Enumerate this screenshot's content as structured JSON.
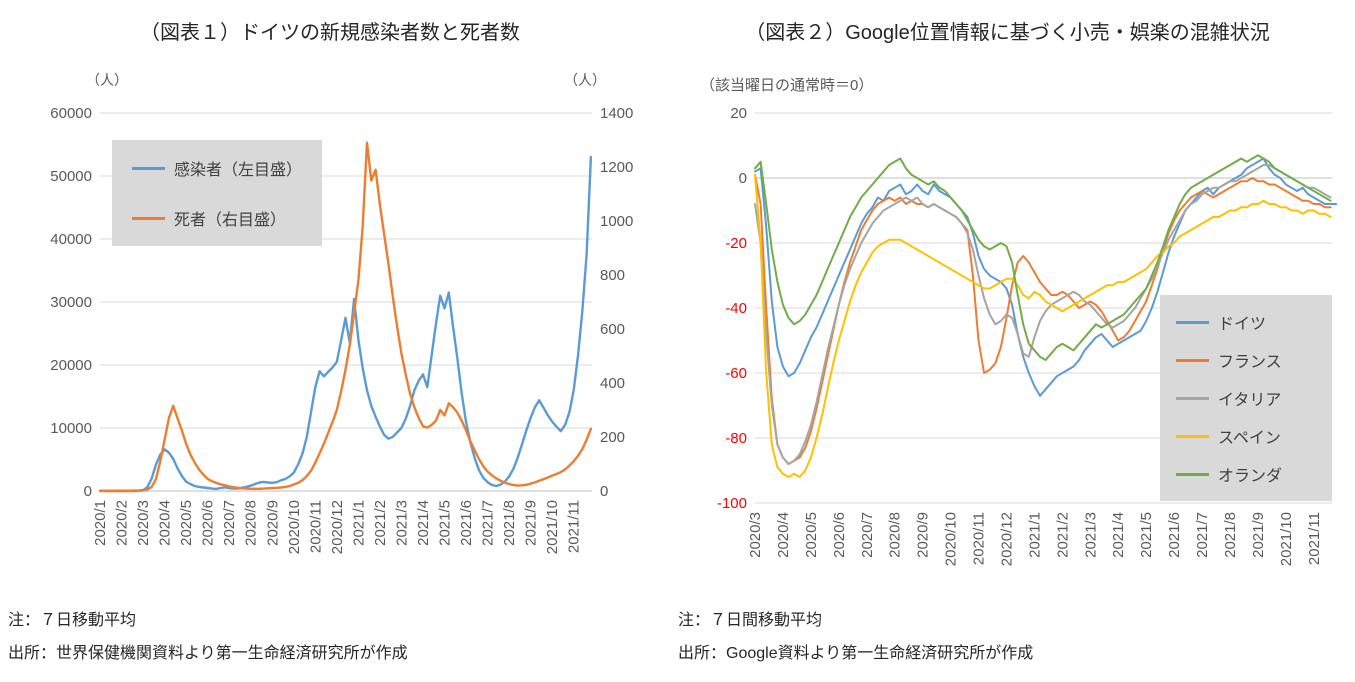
{
  "chart_data": [
    {
      "type": "line",
      "title": "（図表１）ドイツの新規感染者数と死者数",
      "unit_left": "（人）",
      "unit_right": "（人）",
      "x_tick_labels": [
        "2020/1",
        "2020/2",
        "2020/3",
        "2020/4",
        "2020/5",
        "2020/6",
        "2020/7",
        "2020/8",
        "2020/9",
        "2020/10",
        "2020/11",
        "2020/12",
        "2021/1",
        "2021/2",
        "2021/3",
        "2021/4",
        "2021/5",
        "2021/6",
        "2021/7",
        "2021/8",
        "2021/9",
        "2021/10",
        "2021/11"
      ],
      "x_domain": [
        0,
        22.85
      ],
      "x_start": 0,
      "x_step": 0.2,
      "axes": {
        "left": {
          "ylim": [
            0,
            60000
          ],
          "ticks": [
            0,
            10000,
            20000,
            30000,
            40000,
            50000,
            60000
          ]
        },
        "right": {
          "ylim": [
            0,
            1400
          ],
          "ticks": [
            0,
            200,
            400,
            600,
            800,
            1000,
            1200,
            1400
          ]
        }
      },
      "axis_line_at": 0,
      "grid": true,
      "legend_position": "upper-left",
      "series": [
        {
          "id": "infections",
          "name": "感染者（左目盛）",
          "axis": "left",
          "color": "#5B9BD5",
          "values": [
            30,
            32,
            35,
            38,
            42,
            45,
            50,
            55,
            60,
            80,
            150,
            600,
            2000,
            4200,
            5800,
            6600,
            6100,
            5100,
            3600,
            2400,
            1500,
            1100,
            800,
            650,
            550,
            480,
            380,
            330,
            480,
            580,
            450,
            380,
            400,
            520,
            650,
            850,
            1100,
            1350,
            1450,
            1350,
            1300,
            1400,
            1700,
            1900,
            2300,
            2900,
            4200,
            5900,
            8500,
            12500,
            16500,
            19000,
            18200,
            18900,
            19600,
            20500,
            24000,
            27500,
            23500,
            30500,
            24000,
            19500,
            16000,
            13500,
            11800,
            10200,
            8900,
            8300,
            8600,
            9300,
            10000,
            11500,
            13500,
            16000,
            17500,
            18500,
            16500,
            21500,
            26500,
            31000,
            29000,
            31500,
            26000,
            21000,
            15500,
            11000,
            7800,
            5200,
            3300,
            2100,
            1400,
            950,
            800,
            1000,
            1500,
            2300,
            3500,
            5300,
            7400,
            9600,
            11600,
            13300,
            14400,
            13200,
            12000,
            11000,
            10200,
            9500,
            10500,
            12500,
            16000,
            21500,
            28500,
            37500,
            53000
          ]
        },
        {
          "id": "deaths",
          "name": "死者（右目盛）",
          "axis": "right",
          "color": "#ED7D31",
          "values": [
            0,
            0,
            0,
            0,
            0,
            0,
            0,
            0,
            0,
            1,
            2,
            5,
            15,
            45,
            110,
            190,
            270,
            315,
            270,
            225,
            175,
            135,
            105,
            80,
            60,
            45,
            36,
            30,
            25,
            21,
            17,
            14,
            12,
            10,
            9,
            8,
            8,
            8,
            9,
            10,
            11,
            12,
            13,
            15,
            18,
            24,
            30,
            40,
            55,
            75,
            105,
            140,
            175,
            215,
            255,
            300,
            370,
            450,
            540,
            660,
            780,
            980,
            1290,
            1150,
            1190,
            1060,
            950,
            840,
            720,
            610,
            510,
            430,
            360,
            310,
            270,
            240,
            235,
            245,
            260,
            300,
            280,
            325,
            310,
            290,
            260,
            225,
            185,
            150,
            118,
            92,
            72,
            58,
            47,
            38,
            31,
            26,
            22,
            20,
            21,
            23,
            27,
            32,
            38,
            44,
            50,
            57,
            63,
            70,
            80,
            94,
            110,
            130,
            155,
            190,
            230
          ]
        }
      ],
      "note": "注：７日移動平均",
      "source": "出所：世界保健機関資料より第一生命経済研究所が作成"
    },
    {
      "type": "line",
      "title": "（図表２）Google位置情報に基づく小売・娯楽の混雑状況",
      "baseline_label": "（該当曜日の通常時＝0）",
      "x_tick_labels": [
        "2020/3",
        "2020/4",
        "2020/5",
        "2020/6",
        "2020/7",
        "2020/8",
        "2020/9",
        "2020/10",
        "2020/11",
        "2020/12",
        "2021/1",
        "2021/2",
        "2021/3",
        "2021/4",
        "2021/5",
        "2021/6",
        "2021/7",
        "2021/8",
        "2021/9",
        "2021/10",
        "2021/11"
      ],
      "x_domain": [
        0,
        20.65
      ],
      "x_start": 0,
      "x_step": 0.2,
      "axes": {
        "left": {
          "ylim": [
            -100,
            20
          ],
          "ticks": [
            20,
            0,
            -20,
            -40,
            -60,
            -80,
            -100
          ],
          "negative_color": "#FF0000"
        }
      },
      "axis_line_at": 0,
      "grid": true,
      "legend_position": "center-right",
      "series": [
        {
          "id": "germany",
          "name": "ドイツ",
          "axis": "left",
          "color": "#5B9BD5",
          "values": [
            2,
            3,
            -15,
            -38,
            -52,
            -58,
            -61,
            -60,
            -57,
            -53,
            -49,
            -46,
            -42,
            -38,
            -34,
            -30,
            -26,
            -22,
            -18,
            -14,
            -11,
            -9,
            -6,
            -7,
            -4,
            -3,
            -2,
            -5,
            -4,
            -2,
            -4,
            -5,
            -2,
            -4,
            -5,
            -6,
            -8,
            -10,
            -12,
            -17,
            -24,
            -28,
            -30,
            -31,
            -32,
            -34,
            -39,
            -48,
            -55,
            -60,
            -64,
            -67,
            -65,
            -63,
            -61,
            -60,
            -59,
            -58,
            -56,
            -53,
            -51,
            -49,
            -48,
            -50,
            -52,
            -51,
            -50,
            -49,
            -48,
            -47,
            -44,
            -40,
            -35,
            -29,
            -23,
            -18,
            -14,
            -10,
            -8,
            -6,
            -4,
            -3,
            -5,
            -3,
            -2,
            -1,
            0,
            1,
            3,
            4,
            5,
            6,
            3,
            1,
            0,
            -2,
            -3,
            -4,
            -3,
            -5,
            -6,
            -7,
            -8,
            -8,
            -8
          ]
        },
        {
          "id": "france",
          "name": "フランス",
          "axis": "left",
          "color": "#ED7D31",
          "values": [
            1,
            -8,
            -40,
            -68,
            -82,
            -86,
            -88,
            -87,
            -86,
            -83,
            -78,
            -71,
            -63,
            -55,
            -47,
            -39,
            -32,
            -26,
            -21,
            -16,
            -13,
            -10,
            -8,
            -7,
            -6,
            -7,
            -6,
            -8,
            -7,
            -8,
            -8,
            -9,
            -8,
            -9,
            -10,
            -11,
            -12,
            -14,
            -16,
            -30,
            -50,
            -60,
            -59,
            -57,
            -52,
            -43,
            -33,
            -26,
            -24,
            -26,
            -29,
            -32,
            -34,
            -36,
            -36,
            -35,
            -36,
            -38,
            -40,
            -39,
            -38,
            -39,
            -41,
            -44,
            -47,
            -50,
            -49,
            -47,
            -44,
            -41,
            -38,
            -33,
            -28,
            -22,
            -17,
            -13,
            -10,
            -8,
            -6,
            -5,
            -4,
            -5,
            -6,
            -5,
            -4,
            -3,
            -2,
            -1,
            -1,
            0,
            -1,
            -1,
            -2,
            -2,
            -3,
            -4,
            -5,
            -6,
            -7,
            -7,
            -8,
            -8,
            -9,
            -9
          ]
        },
        {
          "id": "italy",
          "name": "イタリア",
          "axis": "left",
          "color": "#A5A5A5",
          "values": [
            -8,
            -20,
            -48,
            -70,
            -82,
            -86,
            -88,
            -87,
            -85,
            -81,
            -76,
            -69,
            -61,
            -53,
            -46,
            -39,
            -33,
            -28,
            -24,
            -20,
            -17,
            -14,
            -12,
            -10,
            -9,
            -8,
            -7,
            -6,
            -7,
            -6,
            -8,
            -9,
            -8,
            -9,
            -10,
            -11,
            -12,
            -14,
            -17,
            -22,
            -30,
            -37,
            -42,
            -45,
            -44,
            -42,
            -43,
            -48,
            -54,
            -55,
            -49,
            -44,
            -41,
            -39,
            -38,
            -37,
            -36,
            -35,
            -36,
            -38,
            -39,
            -41,
            -43,
            -45,
            -46,
            -45,
            -44,
            -42,
            -40,
            -37,
            -34,
            -31,
            -27,
            -23,
            -19,
            -16,
            -13,
            -10,
            -8,
            -7,
            -5,
            -4,
            -3,
            -3,
            -2,
            -1,
            -1,
            0,
            1,
            2,
            3,
            4,
            4,
            3,
            2,
            1,
            0,
            -1,
            -2,
            -3,
            -3,
            -4,
            -5,
            -6
          ]
        },
        {
          "id": "spain",
          "name": "スペイン",
          "axis": "left",
          "color": "#FFC000",
          "values": [
            1,
            -20,
            -60,
            -82,
            -89,
            -91,
            -92,
            -91,
            -92,
            -90,
            -86,
            -80,
            -73,
            -65,
            -57,
            -50,
            -44,
            -38,
            -33,
            -29,
            -26,
            -23,
            -21,
            -20,
            -19,
            -19,
            -19,
            -20,
            -21,
            -22,
            -23,
            -24,
            -25,
            -26,
            -27,
            -28,
            -29,
            -30,
            -31,
            -32,
            -33,
            -34,
            -34,
            -33,
            -32,
            -31,
            -31,
            -33,
            -36,
            -37,
            -35,
            -36,
            -38,
            -39,
            -40,
            -41,
            -40,
            -39,
            -38,
            -37,
            -36,
            -35,
            -34,
            -33,
            -33,
            -32,
            -32,
            -31,
            -30,
            -29,
            -28,
            -26,
            -24,
            -23,
            -21,
            -20,
            -18,
            -17,
            -16,
            -15,
            -14,
            -13,
            -12,
            -12,
            -11,
            -10,
            -10,
            -9,
            -9,
            -8,
            -8,
            -7,
            -8,
            -8,
            -9,
            -9,
            -10,
            -10,
            -11,
            -10,
            -10,
            -11,
            -11,
            -12
          ]
        },
        {
          "id": "netherlands",
          "name": "オランダ",
          "axis": "left",
          "color": "#70AD47",
          "values": [
            3,
            5,
            -8,
            -22,
            -32,
            -39,
            -43,
            -45,
            -44,
            -42,
            -39,
            -36,
            -32,
            -28,
            -24,
            -20,
            -16,
            -12,
            -9,
            -6,
            -4,
            -2,
            0,
            2,
            4,
            5,
            6,
            3,
            1,
            0,
            -1,
            -2,
            -1,
            -3,
            -4,
            -6,
            -8,
            -10,
            -13,
            -16,
            -19,
            -21,
            -22,
            -21,
            -20,
            -21,
            -26,
            -36,
            -45,
            -51,
            -53,
            -55,
            -56,
            -54,
            -52,
            -51,
            -52,
            -53,
            -51,
            -49,
            -47,
            -45,
            -46,
            -45,
            -44,
            -43,
            -42,
            -40,
            -38,
            -36,
            -34,
            -30,
            -26,
            -21,
            -16,
            -12,
            -8,
            -5,
            -3,
            -2,
            -1,
            0,
            1,
            2,
            3,
            4,
            5,
            6,
            5,
            6,
            7,
            6,
            5,
            3,
            2,
            1,
            0,
            -1,
            -2,
            -3,
            -4,
            -5,
            -6,
            -7
          ]
        }
      ],
      "note": "注：７日間移動平均",
      "source": "出所：Google資料より第一生命経済研究所が作成"
    }
  ]
}
